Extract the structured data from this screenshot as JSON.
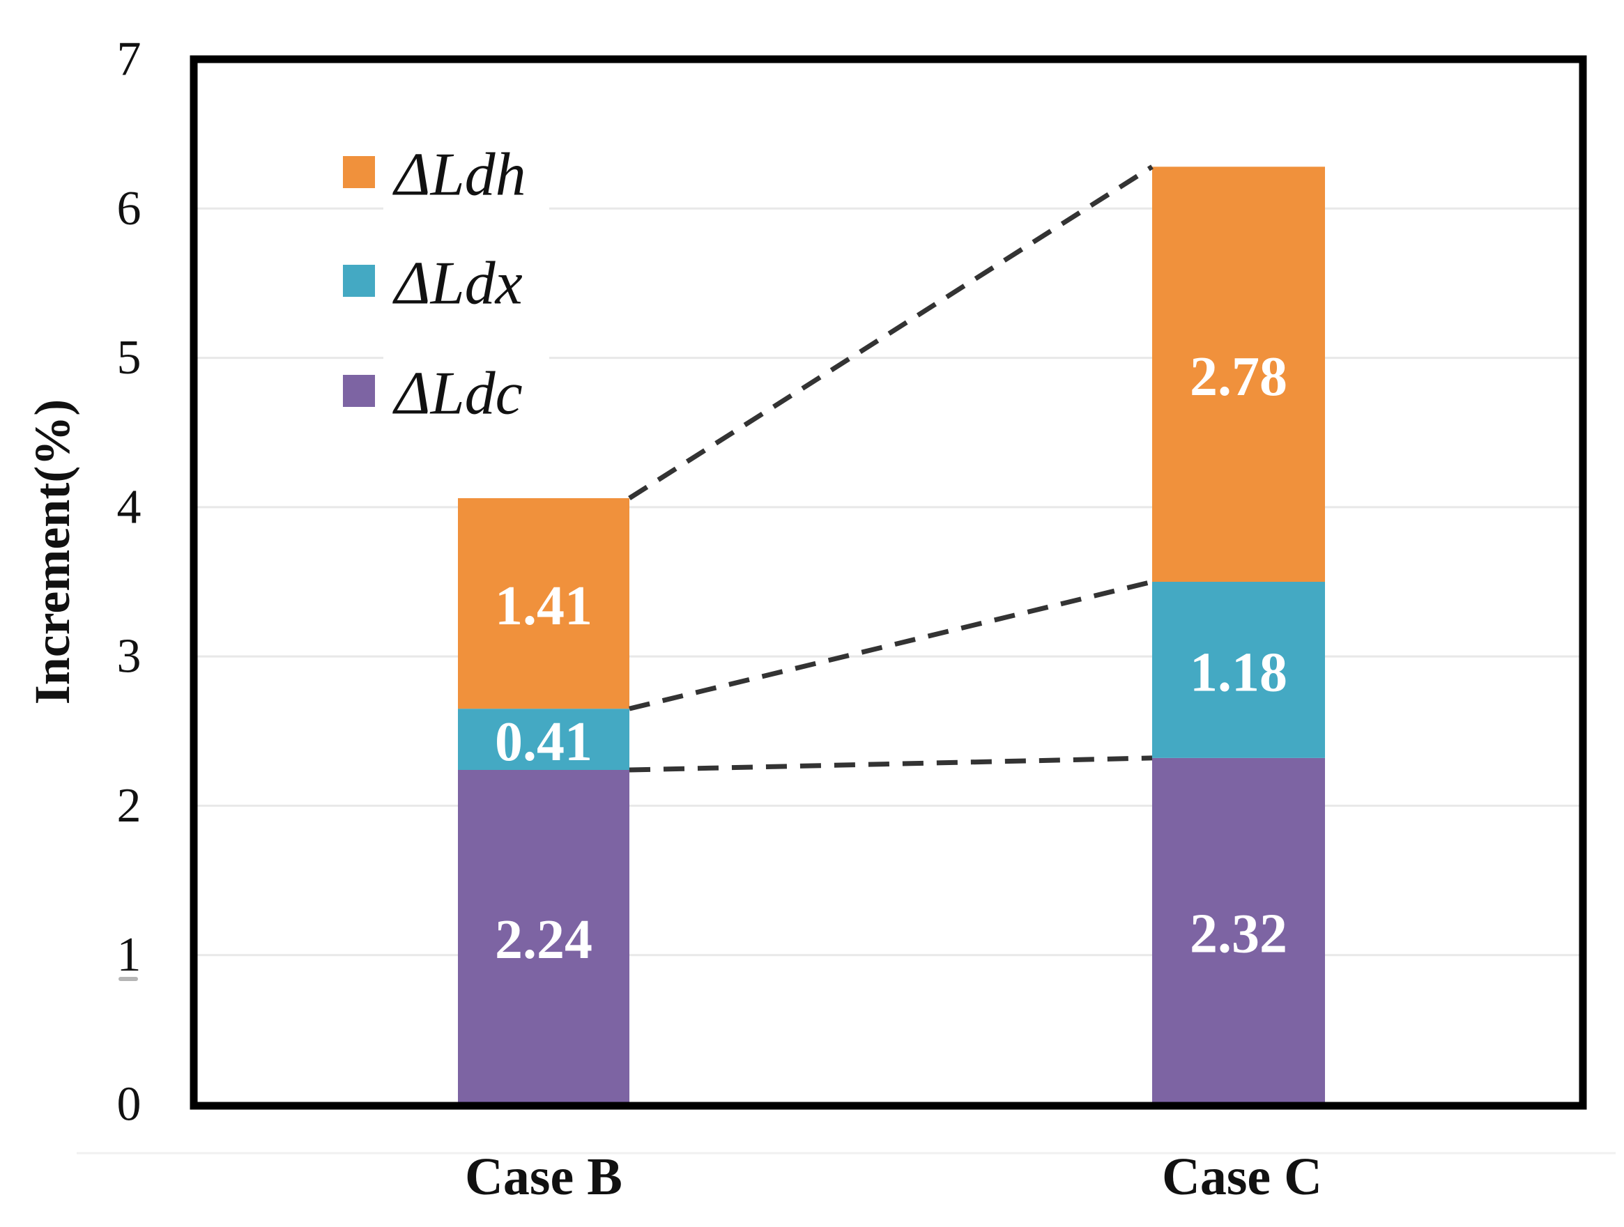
{
  "figure": {
    "background": "#FFFFFF",
    "description": "Stacked bar chart of increment percentages for Case B and Case C"
  },
  "chart_data": {
    "type": "bar",
    "stacked": true,
    "title": "",
    "categories": [
      "Case B",
      "Case C"
    ],
    "series": [
      {
        "name": "ΔLdc",
        "color": "#7D64A3",
        "values": [
          2.24,
          2.32
        ]
      },
      {
        "name": "ΔLdx",
        "color": "#44A9C3",
        "values": [
          0.41,
          1.18
        ]
      },
      {
        "name": "ΔLdh",
        "color": "#F0913C",
        "values": [
          1.41,
          2.78
        ]
      }
    ],
    "stack_totals": [
      4.06,
      6.28
    ],
    "value_labels": [
      [
        "2.24",
        "0.41",
        "1.41"
      ],
      [
        "2.32",
        "1.18",
        "2.78"
      ]
    ],
    "value_label_color": "#FFFFFF",
    "xlabel": "",
    "ylabel": "Increment(%)",
    "ylim": [
      0,
      7
    ],
    "yticks": [
      "0",
      "1",
      "2",
      "3",
      "4",
      "5",
      "6",
      "7"
    ],
    "grid": true,
    "gridline_color": "#E8E8E8",
    "frame_color": "#000000",
    "axis_text_color": "#111111",
    "legend": {
      "position": "top-left-inside",
      "entries": [
        {
          "label": "ΔLdh",
          "color": "#F0913C"
        },
        {
          "label": "ΔLdx",
          "color": "#44A9C3"
        },
        {
          "label": "ΔLdc",
          "color": "#7D64A3"
        }
      ]
    },
    "connectors": {
      "style": "dashed",
      "color": "#333333",
      "pairs": [
        {
          "from_value": 4.06,
          "to_value": 6.28,
          "description": "top of Case B stack to top of Case C stack"
        },
        {
          "from_value": 2.65,
          "to_value": 3.5,
          "description": "top of ΔLdx segment in Case B to Case C"
        },
        {
          "from_value": 2.24,
          "to_value": 2.32,
          "description": "top of ΔLdc segment in Case B to Case C"
        }
      ]
    },
    "artifacts": {
      "tick_dash_below_1": "–",
      "tick_dash_color": "#B5B5B5",
      "faint_line_below_axis_color": "#F0F0F0"
    }
  }
}
